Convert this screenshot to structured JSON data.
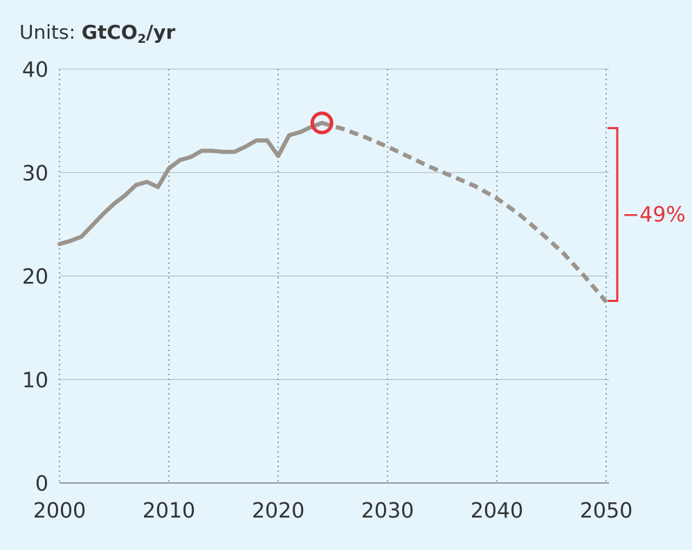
{
  "units": {
    "prefix": "Units: ",
    "unit_main": "GtCO",
    "unit_sub": "2",
    "unit_suffix": "/yr"
  },
  "chart_data": {
    "type": "line",
    "title": "",
    "xlabel": "",
    "ylabel": "Units: GtCO2/yr",
    "xlim": [
      2000,
      2050
    ],
    "ylim": [
      0,
      40
    ],
    "x_ticks": [
      "2000",
      "2010",
      "2020",
      "2030",
      "2040",
      "2050"
    ],
    "y_ticks": [
      "0",
      "10",
      "20",
      "30",
      "40"
    ],
    "grid": true,
    "series": [
      {
        "style": "solid",
        "color": "#9b948d",
        "x": [
          2000,
          2001,
          2002,
          2003,
          2004,
          2005,
          2006,
          2007,
          2008,
          2009,
          2010,
          2011,
          2012,
          2013,
          2014,
          2015,
          2016,
          2017,
          2018,
          2019,
          2020,
          2021,
          2022,
          2023,
          2024
        ],
        "y": [
          23.1,
          23.4,
          23.8,
          24.9,
          26.0,
          27.0,
          27.8,
          28.8,
          29.1,
          28.6,
          30.4,
          31.2,
          31.5,
          32.1,
          32.1,
          32.0,
          32.0,
          32.5,
          33.1,
          33.1,
          31.6,
          33.6,
          33.9,
          34.4,
          34.8
        ]
      },
      {
        "style": "dashed",
        "color": "#9b948d",
        "x": [
          2024,
          2026,
          2028,
          2030,
          2032,
          2034,
          2036,
          2038,
          2040,
          2042,
          2044,
          2046,
          2048,
          2050
        ],
        "y": [
          34.8,
          34.2,
          33.4,
          32.5,
          31.5,
          30.5,
          29.6,
          28.7,
          27.5,
          26.0,
          24.2,
          22.3,
          20.0,
          17.5
        ]
      }
    ],
    "highlight_point": {
      "x": 2024,
      "y": 34.8,
      "color": "#e8333a"
    },
    "annotation": {
      "text": "−49%",
      "from_y": 34.3,
      "to_y": 17.6,
      "color": "#e8333a"
    }
  }
}
